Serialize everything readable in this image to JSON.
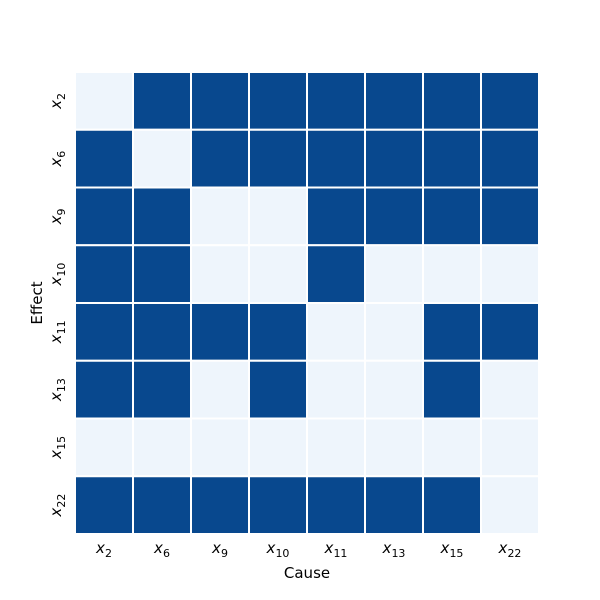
{
  "chart_data": {
    "type": "heatmap",
    "title": "",
    "xlabel": "Cause",
    "ylabel": "Effect",
    "x_categories": [
      {
        "base": "x",
        "sub": "2"
      },
      {
        "base": "x",
        "sub": "6"
      },
      {
        "base": "x",
        "sub": "9"
      },
      {
        "base": "x",
        "sub": "10"
      },
      {
        "base": "x",
        "sub": "11"
      },
      {
        "base": "x",
        "sub": "13"
      },
      {
        "base": "x",
        "sub": "15"
      },
      {
        "base": "x",
        "sub": "22"
      }
    ],
    "y_categories": [
      {
        "base": "x",
        "sub": "2"
      },
      {
        "base": "x",
        "sub": "6"
      },
      {
        "base": "x",
        "sub": "9"
      },
      {
        "base": "x",
        "sub": "10"
      },
      {
        "base": "x",
        "sub": "11"
      },
      {
        "base": "x",
        "sub": "13"
      },
      {
        "base": "x",
        "sub": "15"
      },
      {
        "base": "x",
        "sub": "22"
      }
    ],
    "values": [
      [
        0,
        1,
        1,
        1,
        1,
        1,
        1,
        1
      ],
      [
        1,
        0,
        1,
        1,
        1,
        1,
        1,
        1
      ],
      [
        1,
        1,
        0,
        0,
        1,
        1,
        1,
        1
      ],
      [
        1,
        1,
        0,
        0,
        1,
        0,
        0,
        0
      ],
      [
        1,
        1,
        1,
        1,
        0,
        0,
        1,
        1
      ],
      [
        1,
        1,
        0,
        1,
        0,
        0,
        1,
        0
      ],
      [
        0,
        0,
        0,
        0,
        0,
        0,
        0,
        0
      ],
      [
        1,
        1,
        1,
        1,
        1,
        1,
        1,
        0
      ]
    ],
    "colors": {
      "high": "#08488e",
      "low": "#eef5fc",
      "grid_line": "#ffffff"
    },
    "colorbar": false,
    "legend": "none"
  }
}
